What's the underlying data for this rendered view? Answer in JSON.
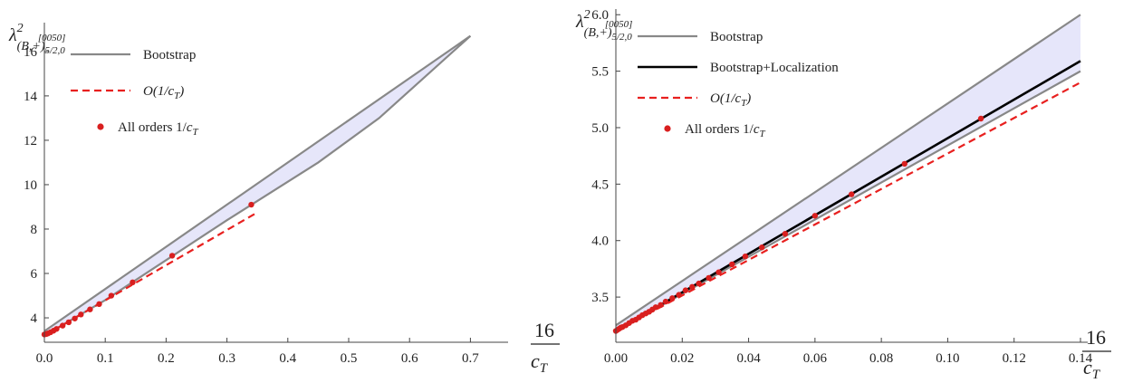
{
  "chart_data": [
    {
      "type": "line",
      "ylabel": "λ²_{(B,+)^{[0050]}_{5/2,0}}",
      "xlabel": "16/c_T",
      "xlim": [
        0,
        0.75
      ],
      "ylim": [
        2.9,
        17.3
      ],
      "xticks": [
        0.0,
        0.1,
        0.2,
        0.3,
        0.4,
        0.5,
        0.6,
        0.7
      ],
      "xtick_labels": [
        "0.0",
        "0.1",
        "0.2",
        "0.3",
        "0.4",
        "0.5",
        "0.6",
        "0.7"
      ],
      "yticks": [
        4,
        6,
        8,
        10,
        12,
        14,
        16
      ],
      "ytick_labels": [
        "4",
        "6",
        "8",
        "10",
        "12",
        "14",
        "16"
      ],
      "legend": [
        "Bootstrap",
        "O(1/c_T)",
        "All orders 1/c_T"
      ],
      "legend_position": "top-left",
      "band": {
        "name": "Bootstrap",
        "upper": [
          [
            0,
            3.4
          ],
          [
            0.7,
            16.7
          ]
        ],
        "lower": [
          [
            0,
            3.2
          ],
          [
            0.1,
            4.8
          ],
          [
            0.2,
            6.6
          ],
          [
            0.3,
            8.4
          ],
          [
            0.45,
            11.0
          ],
          [
            0.55,
            13.0
          ],
          [
            0.7,
            16.7
          ]
        ]
      },
      "series": [
        {
          "name": "O(1/c_T)",
          "style": "dashed",
          "x": [
            0,
            0.35
          ],
          "y": [
            3.2,
            8.75
          ]
        },
        {
          "name": "All orders 1/c_T",
          "style": "points",
          "x": [
            0.0,
            0.003,
            0.006,
            0.01,
            0.015,
            0.02,
            0.03,
            0.04,
            0.05,
            0.06,
            0.075,
            0.09,
            0.11,
            0.145,
            0.21,
            0.34
          ],
          "y": [
            3.25,
            3.27,
            3.3,
            3.35,
            3.42,
            3.5,
            3.65,
            3.8,
            3.97,
            4.15,
            4.38,
            4.62,
            5.0,
            5.6,
            6.8,
            9.1
          ]
        }
      ]
    },
    {
      "type": "line",
      "ylabel": "λ²_{(B,+)^{[0050]}_{5/2,0}}",
      "xlabel": "16/c_T",
      "xlim": [
        0,
        0.14
      ],
      "ylim": [
        3.1,
        6.05
      ],
      "xticks": [
        0.0,
        0.02,
        0.04,
        0.06,
        0.08,
        0.1,
        0.12,
        0.14
      ],
      "xtick_labels": [
        "0.00",
        "0.02",
        "0.04",
        "0.06",
        "0.08",
        "0.10",
        "0.12",
        "0.14"
      ],
      "yticks": [
        3.5,
        4.0,
        4.5,
        5.0,
        5.5,
        6.0
      ],
      "ytick_labels": [
        "3.5",
        "4.0",
        "4.5",
        "5.0",
        "5.5",
        "6.0"
      ],
      "legend": [
        "Bootstrap",
        "Bootstrap+Localization",
        "O(1/c_T)",
        "All orders 1/c_T"
      ],
      "legend_position": "top-left",
      "band": {
        "name": "Bootstrap",
        "upper": [
          [
            0,
            3.25
          ],
          [
            0.14,
            6.0
          ]
        ],
        "lower": [
          [
            0,
            3.2
          ],
          [
            0.14,
            5.5
          ]
        ]
      },
      "series": [
        {
          "name": "Bootstrap+Localization",
          "style": "solid",
          "x": [
            0,
            0.14
          ],
          "y": [
            3.2,
            5.59
          ]
        },
        {
          "name": "O(1/c_T)",
          "style": "dashed",
          "x": [
            0,
            0.14
          ],
          "y": [
            3.2,
            5.4
          ]
        },
        {
          "name": "All orders 1/c_T",
          "style": "points",
          "x": [
            0.0,
            0.0005,
            0.001,
            0.0015,
            0.002,
            0.003,
            0.004,
            0.005,
            0.006,
            0.007,
            0.008,
            0.009,
            0.01,
            0.011,
            0.012,
            0.0135,
            0.015,
            0.017,
            0.019,
            0.021,
            0.023,
            0.025,
            0.028,
            0.031,
            0.035,
            0.039,
            0.044,
            0.051,
            0.06,
            0.071,
            0.087,
            0.11
          ],
          "y": [
            3.2,
            3.21,
            3.22,
            3.23,
            3.235,
            3.25,
            3.27,
            3.29,
            3.3,
            3.32,
            3.34,
            3.355,
            3.37,
            3.39,
            3.41,
            3.43,
            3.46,
            3.49,
            3.52,
            3.56,
            3.59,
            3.62,
            3.67,
            3.72,
            3.79,
            3.86,
            3.94,
            4.06,
            4.22,
            4.41,
            4.68,
            5.08
          ]
        }
      ]
    }
  ]
}
